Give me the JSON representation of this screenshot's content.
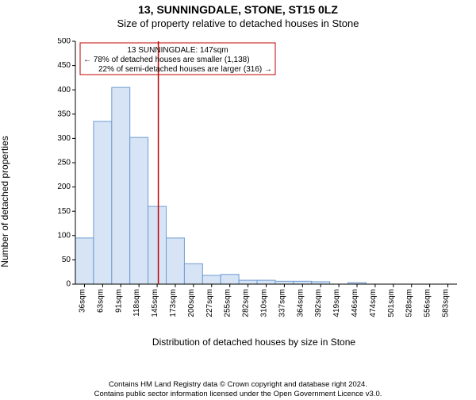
{
  "title": "13, SUNNINGDALE, STONE, ST15 0LZ",
  "subtitle": "Size of property relative to detached houses in Stone",
  "y_axis_label": "Number of detached properties",
  "x_axis_label": "Distribution of detached houses by size in Stone",
  "chart": {
    "type": "histogram",
    "bar_fill": "#d6e4f5",
    "bar_stroke": "#6f9cd1",
    "bar_stroke_width": 1,
    "background": "#ffffff",
    "axis_color": "#000000",
    "tick_color": "#000000",
    "marker_line_color": "#c00000",
    "marker_line_width": 1.5,
    "marker_x_value": 147,
    "ylim": [
      0,
      500
    ],
    "ytick_step": 50,
    "y_ticks": [
      0,
      50,
      100,
      150,
      200,
      250,
      300,
      350,
      400,
      450,
      500
    ],
    "x_tick_labels": [
      "36sqm",
      "63sqm",
      "91sqm",
      "118sqm",
      "145sqm",
      "173sqm",
      "200sqm",
      "227sqm",
      "255sqm",
      "282sqm",
      "310sqm",
      "337sqm",
      "364sqm",
      "392sqm",
      "419sqm",
      "446sqm",
      "474sqm",
      "501sqm",
      "528sqm",
      "556sqm",
      "583sqm"
    ],
    "bin_count": 21,
    "values": [
      95,
      335,
      405,
      302,
      160,
      95,
      42,
      18,
      20,
      8,
      8,
      6,
      6,
      5,
      0,
      3,
      0,
      0,
      0,
      0,
      0
    ],
    "x_domain_start": 22,
    "x_domain_end": 597,
    "bin_width_sqm": 27.38
  },
  "callout": {
    "line1": "13 SUNNINGDALE: 147sqm",
    "line2": "← 78% of detached houses are smaller (1,138)",
    "line3": "22% of semi-detached houses are larger (316) →",
    "box_stroke": "#c00000"
  },
  "footer": {
    "line1": "Contains HM Land Registry data © Crown copyright and database right 2024.",
    "line2": "Contains public sector information licensed under the Open Government Licence v3.0."
  },
  "fonts": {
    "title_size": 14,
    "subtitle_size": 13,
    "axis_label_size": 12,
    "tick_label_size": 10,
    "callout_size": 10,
    "footer_size": 9.5
  }
}
